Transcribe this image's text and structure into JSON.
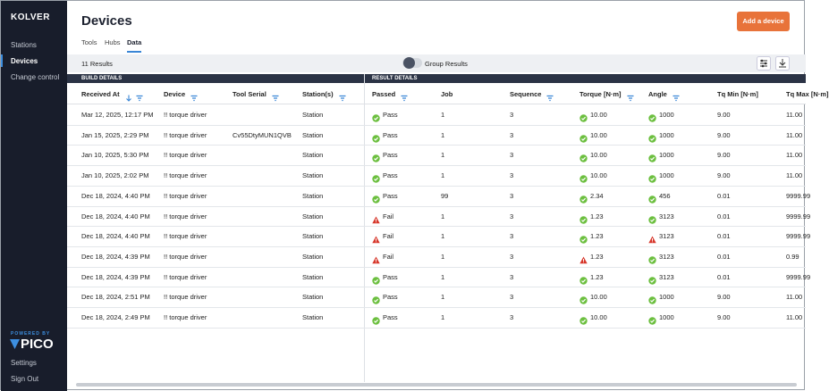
{
  "sidebar": {
    "brand": "KOLVER",
    "nav": [
      "Stations",
      "Devices",
      "Change control"
    ],
    "active": 1,
    "powered": "POWERED BY",
    "logo": "PICO",
    "bottom": [
      "Settings",
      "Sign Out"
    ]
  },
  "header": {
    "title": "Devices",
    "button": "Add a device",
    "tabs": [
      "Tools",
      "Hubs",
      "Data"
    ],
    "active_tab": 2
  },
  "toolbar": {
    "count": "11 Results",
    "toggle": "Group Results"
  },
  "table": {
    "groups": [
      "BUILD DETAILS",
      "RESULT DETAILS"
    ],
    "columns": [
      "Received At",
      "Device",
      "Tool Serial",
      "Station(s)",
      "Passed",
      "Job",
      "Sequence",
      "Torque [N·m]",
      "Angle",
      "Tq Min [N·m]",
      "Tq Max [N·m]"
    ],
    "rows": [
      {
        "cells": [
          "Mar 12, 2025, 12:17 PM",
          "!! torque driver",
          null,
          "Station",
          "Pass",
          "1",
          "3",
          "10.00",
          "1000",
          "9.00",
          "11.00"
        ],
        "ok": [
          true,
          true,
          true
        ]
      },
      {
        "cells": [
          "Jan 15, 2025, 2:29 PM",
          "!! torque driver",
          "Cv55DtyMUN1QVB",
          "Station",
          "Pass",
          "1",
          "3",
          "10.00",
          "1000",
          "9.00",
          "11.00"
        ],
        "ok": [
          true,
          true,
          true
        ]
      },
      {
        "cells": [
          "Jan 10, 2025, 5:30 PM",
          "!! torque driver",
          null,
          "Station",
          "Pass",
          "1",
          "3",
          "10.00",
          "1000",
          "9.00",
          "11.00"
        ],
        "ok": [
          true,
          true,
          true
        ]
      },
      {
        "cells": [
          "Jan 10, 2025, 2:02 PM",
          "!! torque driver",
          null,
          "Station",
          "Pass",
          "1",
          "3",
          "10.00",
          "1000",
          "9.00",
          "11.00"
        ],
        "ok": [
          true,
          true,
          true
        ]
      },
      {
        "cells": [
          "Dec 18, 2024, 4:40 PM",
          "!! torque driver",
          null,
          "Station",
          "Pass",
          "99",
          "3",
          "2.34",
          "456",
          "0.01",
          "9999.99"
        ],
        "ok": [
          true,
          true,
          true
        ]
      },
      {
        "cells": [
          "Dec 18, 2024, 4:40 PM",
          "!! torque driver",
          null,
          "Station",
          "Fail",
          "1",
          "3",
          "1.23",
          "3123",
          "0.01",
          "9999.99"
        ],
        "ok": [
          false,
          true,
          true
        ]
      },
      {
        "cells": [
          "Dec 18, 2024, 4:40 PM",
          "!! torque driver",
          null,
          "Station",
          "Fail",
          "1",
          "3",
          "1.23",
          "3123",
          "0.01",
          "9999.99"
        ],
        "ok": [
          false,
          true,
          false
        ]
      },
      {
        "cells": [
          "Dec 18, 2024, 4:39 PM",
          "!! torque driver",
          null,
          "Station",
          "Fail",
          "1",
          "3",
          "1.23",
          "3123",
          "0.01",
          "0.99"
        ],
        "ok": [
          false,
          false,
          true
        ]
      },
      {
        "cells": [
          "Dec 18, 2024, 4:39 PM",
          "!! torque driver",
          null,
          "Station",
          "Pass",
          "1",
          "3",
          "1.23",
          "3123",
          "0.01",
          "9999.99"
        ],
        "ok": [
          true,
          true,
          true
        ]
      },
      {
        "cells": [
          "Dec 18, 2024, 2:51 PM",
          "!! torque driver",
          null,
          "Station",
          "Pass",
          "1",
          "3",
          "10.00",
          "1000",
          "9.00",
          "11.00"
        ],
        "ok": [
          true,
          true,
          true
        ]
      },
      {
        "cells": [
          "Dec 18, 2024, 2:49 PM",
          "!! torque driver",
          null,
          "Station",
          "Pass",
          "1",
          "3",
          "10.00",
          "1000",
          "9.00",
          "11.00"
        ],
        "ok": [
          true,
          true,
          true
        ]
      }
    ]
  }
}
